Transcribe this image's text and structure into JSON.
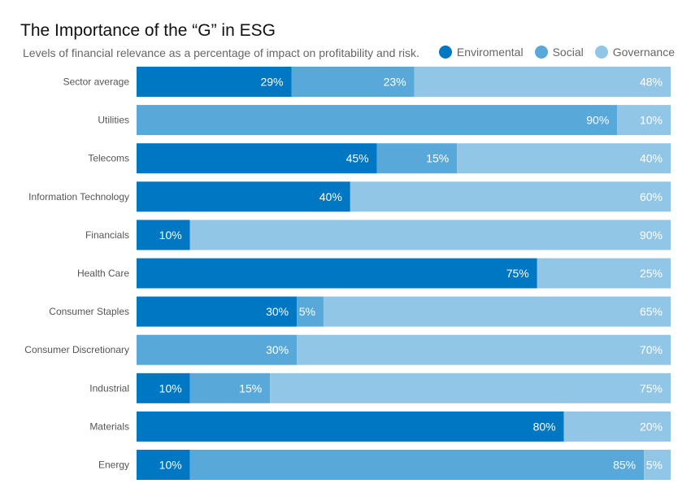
{
  "chart_data": {
    "type": "bar",
    "orientation": "horizontal",
    "stacked": true,
    "title": "The Importance of the “G” in ESG",
    "subtitle": "Levels of financial relevance as a percentage of impact on profitability and risk.",
    "xlabel": "",
    "ylabel": "",
    "xlim": [
      0,
      100
    ],
    "grid": false,
    "legend_position": "top-right",
    "categories": [
      "Sector average",
      "Utilities",
      "Telecoms",
      "Information Technology",
      "Financials",
      "Health Care",
      "Consumer Staples",
      "Consumer Discretionary",
      "Industrial",
      "Materials",
      "Energy"
    ],
    "series": [
      {
        "name": "Enviromental",
        "color": "#0077c2",
        "values": [
          29,
          0,
          45,
          40,
          10,
          75,
          30,
          0,
          10,
          80,
          10
        ]
      },
      {
        "name": "Social",
        "color": "#58a9d9",
        "values": [
          23,
          90,
          15,
          0,
          0,
          0,
          5,
          30,
          15,
          0,
          85
        ]
      },
      {
        "name": "Governance",
        "color": "#92c6e6",
        "values": [
          48,
          10,
          40,
          60,
          90,
          25,
          65,
          70,
          75,
          20,
          5
        ]
      }
    ],
    "value_suffix": "%"
  }
}
